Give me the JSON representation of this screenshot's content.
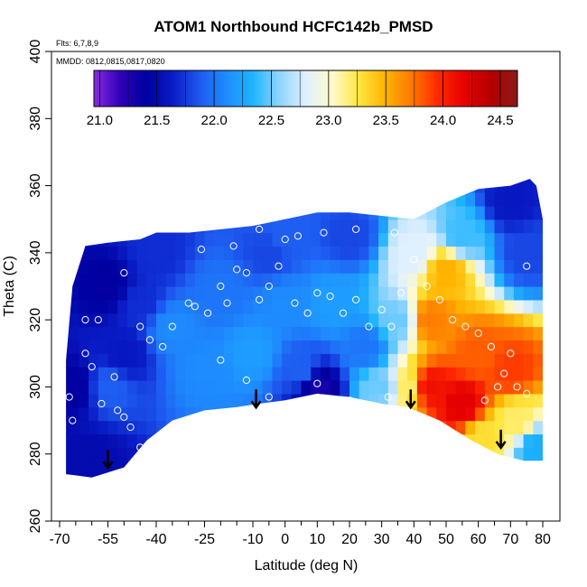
{
  "chart_data": {
    "type": "heatmap",
    "title": "ATOM1 Northbound HCFC142b_PMSD",
    "note_flights": "Flts: 6,7,8,9",
    "note_dates": "MMDD: 0812,0815,0817,0820",
    "xlabel": "Latitude (deg N)",
    "ylabel": "Theta (C)",
    "xlim": [
      -70,
      80
    ],
    "ylim": [
      260,
      400
    ],
    "x_ticks": [
      "-70",
      "-55",
      "-40",
      "-25",
      "-10",
      "0",
      "10",
      "20",
      "30",
      "40",
      "50",
      "60",
      "70",
      "80"
    ],
    "x_tick_values": [
      -70,
      -55,
      -40,
      -25,
      -10,
      0,
      10,
      20,
      30,
      40,
      50,
      60,
      70,
      80
    ],
    "x_minor_ticks": [
      -65,
      -60,
      -50,
      -45,
      -35,
      -30,
      -20,
      -15,
      -5,
      5,
      15,
      25,
      35,
      45,
      55,
      65,
      75
    ],
    "y_ticks": [
      "260",
      "280",
      "300",
      "320",
      "340",
      "360",
      "380",
      "400"
    ],
    "y_tick_values": [
      260,
      280,
      300,
      320,
      340,
      360,
      380,
      400
    ],
    "colorbar": {
      "ticks": [
        "21.0",
        "21.5",
        "22.0",
        "22.5",
        "23.0",
        "23.5",
        "24.0",
        "24.5"
      ],
      "tick_values": [
        21.0,
        21.5,
        22.0,
        22.5,
        23.0,
        23.5,
        24.0,
        24.5
      ],
      "range": [
        20.95,
        24.65
      ],
      "colors": [
        "#8a2be2",
        "#2e00b8",
        "#0000a0",
        "#0a1ec8",
        "#1e5af0",
        "#1e8cff",
        "#1eb4ff",
        "#8fd4ff",
        "#dff0ff",
        "#fffacd",
        "#ffe640",
        "#ffb400",
        "#ff7800",
        "#ff2800",
        "#e60000",
        "#b40000",
        "#8b1a1a"
      ]
    },
    "arrows": [
      -55,
      -9,
      39,
      67
    ],
    "data_bounds": {
      "lower": [
        [
          -68,
          274
        ],
        [
          -60,
          273
        ],
        [
          -50,
          276
        ],
        [
          -43,
          284
        ],
        [
          -35,
          290
        ],
        [
          -25,
          293
        ],
        [
          -15,
          294
        ],
        [
          -8,
          295
        ],
        [
          0,
          296
        ],
        [
          10,
          298
        ],
        [
          20,
          297
        ],
        [
          30,
          295
        ],
        [
          38,
          294
        ],
        [
          48,
          290
        ],
        [
          58,
          284
        ],
        [
          66,
          280
        ],
        [
          74,
          278
        ],
        [
          80,
          278
        ]
      ],
      "upper": [
        [
          -68,
          308
        ],
        [
          -66,
          330
        ],
        [
          -62,
          342
        ],
        [
          -55,
          343
        ],
        [
          -45,
          344
        ],
        [
          -40,
          346
        ],
        [
          -30,
          346
        ],
        [
          -20,
          347
        ],
        [
          -10,
          348
        ],
        [
          0,
          350
        ],
        [
          10,
          352
        ],
        [
          20,
          352
        ],
        [
          30,
          351
        ],
        [
          40,
          350
        ],
        [
          50,
          355
        ],
        [
          60,
          359
        ],
        [
          70,
          360
        ],
        [
          76,
          362
        ],
        [
          78,
          360
        ],
        [
          80,
          350
        ],
        [
          80,
          278
        ]
      ]
    },
    "value_anchors": [
      {
        "x": -60,
        "y": 278,
        "v": 21.5
      },
      {
        "x": -55,
        "y": 300,
        "v": 21.9
      },
      {
        "x": -50,
        "y": 310,
        "v": 21.6
      },
      {
        "x": -55,
        "y": 330,
        "v": 21.4
      },
      {
        "x": -45,
        "y": 325,
        "v": 21.7
      },
      {
        "x": -35,
        "y": 318,
        "v": 22.1
      },
      {
        "x": -25,
        "y": 305,
        "v": 22.1
      },
      {
        "x": -20,
        "y": 328,
        "v": 22.0
      },
      {
        "x": -10,
        "y": 310,
        "v": 22.2
      },
      {
        "x": -5,
        "y": 340,
        "v": 21.8
      },
      {
        "x": 0,
        "y": 325,
        "v": 22.1
      },
      {
        "x": 5,
        "y": 305,
        "v": 21.9
      },
      {
        "x": 10,
        "y": 300,
        "v": 21.3
      },
      {
        "x": 15,
        "y": 325,
        "v": 22.2
      },
      {
        "x": 20,
        "y": 345,
        "v": 21.8
      },
      {
        "x": 25,
        "y": 312,
        "v": 22.0
      },
      {
        "x": 30,
        "y": 300,
        "v": 22.5
      },
      {
        "x": 35,
        "y": 320,
        "v": 22.5
      },
      {
        "x": 38,
        "y": 300,
        "v": 23.2
      },
      {
        "x": 40,
        "y": 340,
        "v": 22.8
      },
      {
        "x": 45,
        "y": 320,
        "v": 23.7
      },
      {
        "x": 45,
        "y": 300,
        "v": 24.1
      },
      {
        "x": 50,
        "y": 335,
        "v": 23.5
      },
      {
        "x": 55,
        "y": 295,
        "v": 24.2
      },
      {
        "x": 60,
        "y": 310,
        "v": 23.8
      },
      {
        "x": 62,
        "y": 285,
        "v": 23.3
      },
      {
        "x": 70,
        "y": 305,
        "v": 23.9
      },
      {
        "x": 72,
        "y": 290,
        "v": 23.2
      },
      {
        "x": 75,
        "y": 340,
        "v": 21.8
      },
      {
        "x": 70,
        "y": 355,
        "v": 21.6
      },
      {
        "x": -65,
        "y": 300,
        "v": 21.4
      },
      {
        "x": -40,
        "y": 340,
        "v": 21.7
      },
      {
        "x": 0,
        "y": 345,
        "v": 21.9
      },
      {
        "x": 55,
        "y": 345,
        "v": 22.4
      },
      {
        "x": 78,
        "y": 282,
        "v": 22.3
      }
    ],
    "observation_points": [
      [
        -67,
        297
      ],
      [
        -66,
        290
      ],
      [
        -62,
        310
      ],
      [
        -60,
        306
      ],
      [
        -57,
        295
      ],
      [
        -53,
        303
      ],
      [
        -52,
        293
      ],
      [
        -50,
        291
      ],
      [
        -48,
        288
      ],
      [
        -45,
        282
      ],
      [
        -62,
        320
      ],
      [
        -58,
        320
      ],
      [
        -50,
        334
      ],
      [
        -45,
        318
      ],
      [
        -42,
        314
      ],
      [
        -38,
        312
      ],
      [
        -35,
        318
      ],
      [
        -30,
        325
      ],
      [
        -28,
        324
      ],
      [
        -24,
        322
      ],
      [
        -20,
        330
      ],
      [
        -18,
        325
      ],
      [
        -15,
        335
      ],
      [
        -12,
        334
      ],
      [
        -8,
        326
      ],
      [
        -5,
        330
      ],
      [
        -2,
        336
      ],
      [
        3,
        325
      ],
      [
        7,
        322
      ],
      [
        10,
        328
      ],
      [
        14,
        327
      ],
      [
        18,
        322
      ],
      [
        22,
        326
      ],
      [
        26,
        318
      ],
      [
        30,
        323
      ],
      [
        33,
        318
      ],
      [
        36,
        328
      ],
      [
        40,
        338
      ],
      [
        44,
        330
      ],
      [
        48,
        326
      ],
      [
        52,
        320
      ],
      [
        56,
        318
      ],
      [
        60,
        316
      ],
      [
        64,
        312
      ],
      [
        68,
        304
      ],
      [
        72,
        300
      ],
      [
        75,
        298
      ],
      [
        70,
        310
      ],
      [
        66,
        300
      ],
      [
        62,
        296
      ],
      [
        -20,
        308
      ],
      [
        -12,
        302
      ],
      [
        -5,
        297
      ],
      [
        10,
        301
      ],
      [
        20,
        296
      ],
      [
        32,
        297
      ],
      [
        -8,
        347
      ],
      [
        4,
        345
      ],
      [
        12,
        346
      ],
      [
        22,
        347
      ],
      [
        34,
        346
      ],
      [
        -26,
        341
      ],
      [
        -16,
        342
      ],
      [
        0,
        344
      ],
      [
        75,
        336
      ]
    ]
  }
}
